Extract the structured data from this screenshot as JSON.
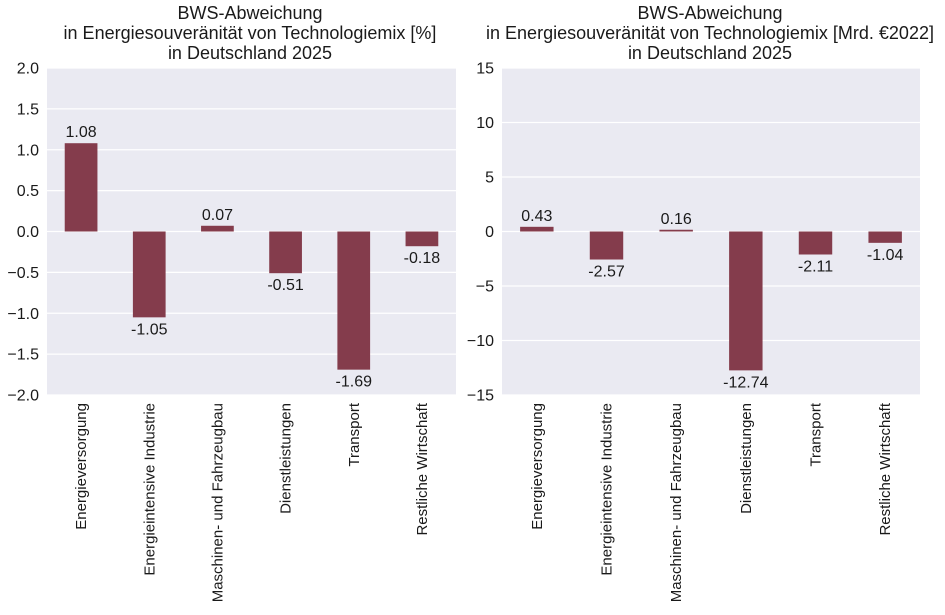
{
  "colors": {
    "bar": "#843c4c",
    "plot_bg": "#eaeaf2",
    "grid": "#ffffff",
    "text": "#1a1a1a"
  },
  "chart_data": [
    {
      "type": "bar",
      "title_lines": [
        "BWS-Abweichung",
        "in Energiesouveränität von Technologiemix [%]",
        "in Deutschland 2025"
      ],
      "categories": [
        "Energieversorgung",
        "Energieintensive Industrie",
        "Maschinen- und Fahrzeugbau",
        "Dienstleistungen",
        "Transport",
        "Restliche Wirtschaft"
      ],
      "values": [
        1.08,
        -1.05,
        0.07,
        -0.51,
        -1.69,
        -0.18
      ],
      "value_labels": [
        "1.08",
        "-1.05",
        "0.07",
        "-0.51",
        "-1.69",
        "-0.18"
      ],
      "ylim": [
        -2.0,
        2.0
      ],
      "yticks": [
        2.0,
        1.5,
        1.0,
        0.5,
        0.0,
        -0.5,
        -1.0,
        -1.5,
        -2.0
      ],
      "ytick_labels": [
        "2.0",
        "1.5",
        "1.0",
        "0.5",
        "0.0",
        "−0.5",
        "−1.0",
        "−1.5",
        "−2.0"
      ],
      "grid": true
    },
    {
      "type": "bar",
      "title_lines": [
        "BWS-Abweichung",
        "in Energiesouveränität von Technologiemix [Mrd. €2022]",
        "in Deutschland 2025"
      ],
      "categories": [
        "Energieversorgung",
        "Energieintensive Industrie",
        "Maschinen- und Fahrzeugbau",
        "Dienstleistungen",
        "Transport",
        "Restliche Wirtschaft"
      ],
      "values": [
        0.43,
        -2.57,
        0.16,
        -12.74,
        -2.11,
        -1.04
      ],
      "value_labels": [
        "0.43",
        "-2.57",
        "0.16",
        "-12.74",
        "-2.11",
        "-1.04"
      ],
      "ylim": [
        -15,
        15
      ],
      "yticks": [
        15,
        10,
        5,
        0,
        -5,
        -10,
        -15
      ],
      "ytick_labels": [
        "15",
        "10",
        "5",
        "0",
        "−5",
        "−10",
        "−15"
      ],
      "grid": true
    }
  ]
}
